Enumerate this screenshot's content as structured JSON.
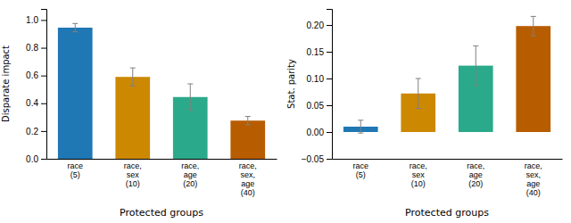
{
  "chart_data": [
    {
      "type": "bar",
      "xlabel": "Protected groups",
      "ylabel": "Disparate impact",
      "categories": [
        "race\n(5)",
        "race,\nsex\n(10)",
        "race,\nage\n(20)",
        "race,\nsex,\nage\n(40)"
      ],
      "values": [
        0.945,
        0.59,
        0.445,
        0.275
      ],
      "errors": [
        0.03,
        0.065,
        0.095,
        0.03
      ],
      "colors": [
        "#1f77b4",
        "#cc8800",
        "#2aaa8a",
        "#b85c00"
      ],
      "ylim": [
        0.0,
        1.08
      ],
      "yticks": [
        {
          "value": 0.0,
          "label": "0.0"
        },
        0.2,
        0.4,
        0.6,
        0.8,
        {
          "value": 1.0,
          "label": "1.0"
        }
      ]
    },
    {
      "type": "bar",
      "xlabel": "Protected groups",
      "ylabel": "Stat. parity",
      "categories": [
        "race\n(5)",
        "race,\nsex\n(10)",
        "race,\nage\n(20)",
        "race,\nsex,\nage\n(40)"
      ],
      "values": [
        0.01,
        0.072,
        0.124,
        0.198
      ],
      "errors": [
        0.012,
        0.028,
        0.037,
        0.018
      ],
      "colors": [
        "#1f77b4",
        "#cc8800",
        "#2aaa8a",
        "#b85c00"
      ],
      "ylim": [
        -0.05,
        0.23
      ],
      "yticks": [
        {
          "value": -0.05,
          "label": "−0.05"
        },
        {
          "value": 0.0,
          "label": "0.00"
        },
        0.05,
        {
          "value": 0.1,
          "label": "0.10"
        },
        0.15,
        {
          "value": 0.2,
          "label": "0.20"
        }
      ]
    }
  ]
}
